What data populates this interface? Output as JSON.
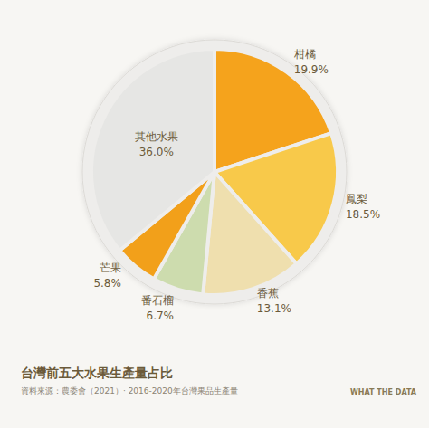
{
  "chart_data": {
    "type": "pie",
    "title": "台灣前五大水果生產量占比",
    "subtitle": "資料來源：農委會（2021）· 2016-2020年台灣果品生產量",
    "annotations": [
      "WHAT THE DATA"
    ],
    "categories": [
      "柑橘",
      "鳳梨",
      "香蕉",
      "番石榴",
      "芒果",
      "其他水果"
    ],
    "values": [
      19.9,
      18.5,
      13.1,
      6.7,
      5.8,
      36.0
    ],
    "value_labels": [
      "19.9%",
      "18.5%",
      "13.1%",
      "6.7%",
      "5.8%",
      "36.0%"
    ],
    "colors": [
      "#f5a31c",
      "#f8c94a",
      "#efdfae",
      "#cddcae",
      "#f2a01a",
      "#e6e6e4"
    ],
    "data_labels": true,
    "legend": false
  }
}
